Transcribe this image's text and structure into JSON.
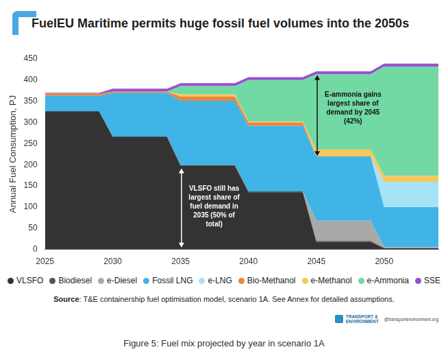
{
  "chart_data": {
    "type": "area",
    "title": "FuelEU Maritime permits huge fossil fuel volumes into the 2050s",
    "y_label": "Annual Fuel Consumption, PJ",
    "x": [
      2025,
      2029,
      2030,
      2034,
      2035,
      2039,
      2040,
      2044,
      2045,
      2049,
      2050,
      2054
    ],
    "series": [
      {
        "name": "VLSFO",
        "color": "#333333",
        "values": [
          325,
          325,
          265,
          265,
          197,
          197,
          135,
          135,
          18,
          18,
          3,
          3
        ]
      },
      {
        "name": "Biodiesel",
        "color": "#555555",
        "values": [
          2,
          2,
          2,
          2,
          2,
          2,
          2,
          2,
          2,
          2,
          0,
          0
        ]
      },
      {
        "name": "e-Diesel",
        "color": "#a9a9a9",
        "values": [
          0,
          0,
          0,
          0,
          0,
          0,
          0,
          0,
          48,
          48,
          2,
          2
        ]
      },
      {
        "name": "Fossil LNG",
        "color": "#40b4e6",
        "values": [
          36,
          36,
          103,
          103,
          152,
          152,
          155,
          155,
          152,
          152,
          95,
          95
        ]
      },
      {
        "name": "e-LNG",
        "color": "#a8e2f7",
        "values": [
          0,
          0,
          0,
          0,
          0,
          0,
          0,
          0,
          0,
          0,
          60,
          60
        ]
      },
      {
        "name": "Bio-Methanol",
        "color": "#e8873a",
        "values": [
          5,
          5,
          3,
          3,
          10,
          10,
          8,
          8,
          0,
          0,
          0,
          0
        ]
      },
      {
        "name": "e-Methanol",
        "color": "#f5c85a",
        "values": [
          0,
          0,
          0,
          0,
          5,
          5,
          2,
          2,
          16,
          16,
          14,
          14
        ]
      },
      {
        "name": "e-Ammonia",
        "color": "#72d8a4",
        "values": [
          0,
          0,
          0,
          0,
          20,
          20,
          98,
          98,
          178,
          178,
          258,
          258
        ]
      },
      {
        "name": "SSE",
        "color": "#9a4fd0",
        "values": [
          2,
          2,
          7,
          7,
          7,
          7,
          7,
          7,
          7,
          7,
          7,
          7
        ]
      }
    ],
    "xlim": [
      2025,
      2054
    ],
    "xticks": [
      2025,
      2030,
      2035,
      2040,
      2045,
      2050
    ],
    "ylim": [
      0,
      450
    ],
    "yticks": [
      0,
      50,
      100,
      150,
      200,
      250,
      300,
      350,
      400,
      450
    ],
    "stacked": true,
    "grid": false,
    "legend": "bottom",
    "annotations": [
      {
        "text": [
          "VLSFO still has",
          "largest share of",
          "fuel demand in",
          "2035 (50% of",
          "total)"
        ]
      },
      {
        "text": [
          "E-ammonia gains",
          "largest share of",
          "demand by 2045",
          "(42%)"
        ]
      }
    ],
    "source": "Source: T&E containership fuel optimisation model, scenario 1A. See Annex for detailed assumptions.",
    "footer": [
      "TRANSPORT &",
      "ENVIRONMENT",
      "@transportenvironment.org"
    ],
    "caption": "Figure 5: Fuel mix projected by year in scenario 1A"
  }
}
